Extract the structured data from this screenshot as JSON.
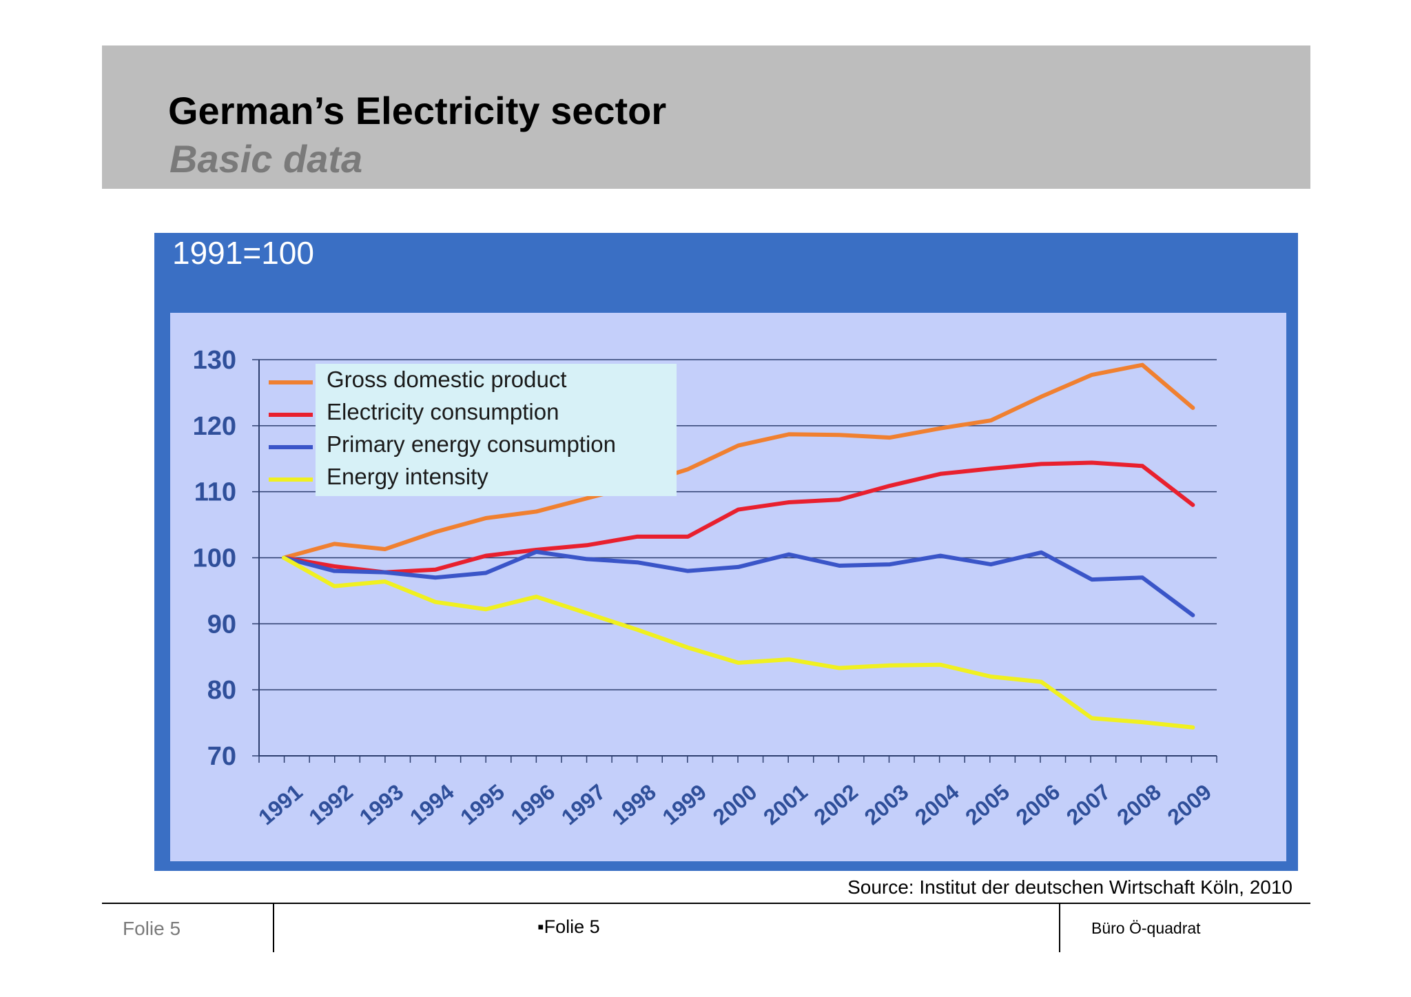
{
  "slide": {
    "title": "German’s Electricity sector",
    "subtitle": "Basic data",
    "header_bg": "#bdbdbd"
  },
  "chart_note": "1991=100",
  "source": "Source: Institut der deutschen Wirtschaft Köln, 2010",
  "footer": {
    "left": "Folie 5",
    "center": "▪Folie 5",
    "right": "Büro Ö-quadrat"
  },
  "chart_data": {
    "type": "line",
    "title": "",
    "xlabel": "",
    "ylabel": "",
    "ylim": [
      70,
      130
    ],
    "yticks": [
      70,
      80,
      90,
      100,
      110,
      120,
      130
    ],
    "grid": true,
    "legend_position": "top-left",
    "x": [
      "1991",
      "1992",
      "1993",
      "1994",
      "1995",
      "1996",
      "1997",
      "1998",
      "1999",
      "2000",
      "2001",
      "2002",
      "2003",
      "2004",
      "2005",
      "2006",
      "2007",
      "2008",
      "2009"
    ],
    "series": [
      {
        "name": "Gross domestic product",
        "color": "#f08030",
        "values": [
          100,
          102.1,
          101.3,
          103.9,
          106.0,
          107.0,
          109.0,
          111.0,
          113.4,
          117.0,
          118.7,
          118.6,
          118.2,
          119.6,
          120.8,
          124.4,
          127.7,
          129.2,
          122.7
        ]
      },
      {
        "name": "Electricity consumption",
        "color": "#e8202e",
        "values": [
          100,
          98.7,
          97.8,
          98.2,
          100.3,
          101.2,
          101.9,
          103.2,
          103.2,
          107.3,
          108.4,
          108.8,
          110.9,
          112.7,
          113.5,
          114.2,
          114.4,
          113.9,
          108.0
        ]
      },
      {
        "name": "Primary energy consumption",
        "color": "#3a55c8",
        "values": [
          100,
          98.0,
          97.8,
          97.0,
          97.7,
          100.9,
          99.8,
          99.3,
          98.0,
          98.6,
          100.5,
          98.8,
          99.0,
          100.3,
          99.0,
          100.8,
          96.7,
          97.0,
          91.3
        ]
      },
      {
        "name": "Energy intensity",
        "color": "#f0f020",
        "values": [
          100,
          95.7,
          96.4,
          93.3,
          92.2,
          94.1,
          91.6,
          89.1,
          86.4,
          84.1,
          84.6,
          83.3,
          83.7,
          83.8,
          82.0,
          81.2,
          75.7,
          75.1,
          74.3
        ]
      }
    ]
  }
}
